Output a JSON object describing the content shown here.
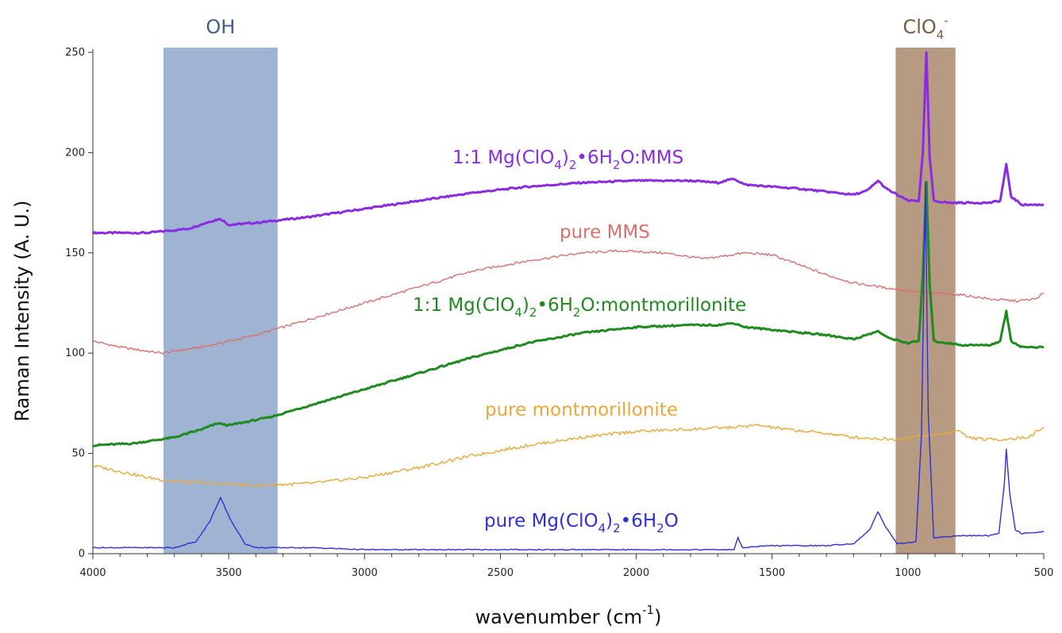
{
  "chart_data": {
    "type": "line",
    "title": "",
    "xlabel": {
      "main": "wavenumber (cm",
      "sup": "-1",
      "end": ")"
    },
    "ylabel": "Raman Intensity (A. U.)",
    "xlim": [
      4000,
      500
    ],
    "ylim": [
      0,
      250
    ],
    "x_reversed": true,
    "x_ticks": [
      4000,
      3500,
      3000,
      2500,
      2000,
      1500,
      1000,
      500
    ],
    "y_ticks": [
      0,
      50,
      100,
      150,
      200,
      250
    ],
    "grid": false,
    "bands": [
      {
        "label": "OH",
        "x_start": 3740,
        "x_end": 3320,
        "color": "#9eb4d2"
      },
      {
        "label": "ClO",
        "label_sub": "4",
        "label_sup": "-",
        "x_start": 1045,
        "x_end": 825,
        "color": "#b79a82"
      }
    ],
    "series": [
      {
        "key": "mg_mms",
        "label_parts": [
          "1:1 Mg(ClO",
          "4",
          ")",
          "2",
          "•",
          "6H",
          "2",
          "O:MMS"
        ],
        "color": "#8a2be2",
        "points": [
          [
            4000,
            160
          ],
          [
            3800,
            160
          ],
          [
            3650,
            162
          ],
          [
            3560,
            166
          ],
          [
            3530,
            167
          ],
          [
            3500,
            164
          ],
          [
            3400,
            165
          ],
          [
            3200,
            168
          ],
          [
            3000,
            172
          ],
          [
            2800,
            176
          ],
          [
            2600,
            180
          ],
          [
            2400,
            183
          ],
          [
            2200,
            185
          ],
          [
            2000,
            186
          ],
          [
            1800,
            186
          ],
          [
            1700,
            185
          ],
          [
            1640,
            187
          ],
          [
            1600,
            184
          ],
          [
            1400,
            182
          ],
          [
            1200,
            179
          ],
          [
            1150,
            181
          ],
          [
            1110,
            186
          ],
          [
            1080,
            182
          ],
          [
            1000,
            176
          ],
          [
            960,
            176
          ],
          [
            945,
            200
          ],
          [
            932,
            250
          ],
          [
            920,
            198
          ],
          [
            905,
            176
          ],
          [
            850,
            175
          ],
          [
            700,
            175
          ],
          [
            660,
            176
          ],
          [
            638,
            194
          ],
          [
            620,
            178
          ],
          [
            580,
            174
          ],
          [
            500,
            174
          ]
        ]
      },
      {
        "key": "pure_mms",
        "label_parts": [
          "pure MMS"
        ],
        "color": "#d97070",
        "points": [
          [
            4000,
            106
          ],
          [
            3900,
            103
          ],
          [
            3750,
            100
          ],
          [
            3600,
            103
          ],
          [
            3400,
            109
          ],
          [
            3200,
            117
          ],
          [
            3000,
            125
          ],
          [
            2800,
            133
          ],
          [
            2600,
            141
          ],
          [
            2400,
            146
          ],
          [
            2200,
            150
          ],
          [
            2050,
            151
          ],
          [
            1900,
            150
          ],
          [
            1750,
            147
          ],
          [
            1600,
            150
          ],
          [
            1500,
            149
          ],
          [
            1400,
            144
          ],
          [
            1300,
            139
          ],
          [
            1200,
            135
          ],
          [
            1100,
            133
          ],
          [
            1000,
            131
          ],
          [
            900,
            130
          ],
          [
            800,
            129
          ],
          [
            700,
            127
          ],
          [
            600,
            126
          ],
          [
            530,
            127
          ],
          [
            500,
            130
          ]
        ]
      },
      {
        "key": "mg_mont",
        "label_parts": [
          "1:1 Mg(ClO",
          "4",
          ")",
          "2",
          "•",
          "6H",
          "2",
          "O:montmorillonite"
        ],
        "color": "#1f8a1f",
        "points": [
          [
            4000,
            54
          ],
          [
            3850,
            55
          ],
          [
            3700,
            58
          ],
          [
            3600,
            62
          ],
          [
            3540,
            65
          ],
          [
            3500,
            64
          ],
          [
            3350,
            68
          ],
          [
            3200,
            74
          ],
          [
            3000,
            82
          ],
          [
            2800,
            90
          ],
          [
            2600,
            98
          ],
          [
            2400,
            105
          ],
          [
            2200,
            110
          ],
          [
            2000,
            113
          ],
          [
            1800,
            114
          ],
          [
            1700,
            114
          ],
          [
            1640,
            115
          ],
          [
            1600,
            113
          ],
          [
            1450,
            111
          ],
          [
            1300,
            109
          ],
          [
            1200,
            107
          ],
          [
            1130,
            110
          ],
          [
            1110,
            111
          ],
          [
            1080,
            108
          ],
          [
            1000,
            105
          ],
          [
            960,
            106
          ],
          [
            945,
            140
          ],
          [
            932,
            185
          ],
          [
            920,
            135
          ],
          [
            905,
            106
          ],
          [
            800,
            104
          ],
          [
            700,
            104
          ],
          [
            660,
            106
          ],
          [
            638,
            121
          ],
          [
            620,
            106
          ],
          [
            580,
            103
          ],
          [
            500,
            103
          ]
        ]
      },
      {
        "key": "pure_mont",
        "label_parts": [
          "pure montmorillonite"
        ],
        "color": "#e8a83a",
        "points": [
          [
            4000,
            44
          ],
          [
            3900,
            41
          ],
          [
            3800,
            38
          ],
          [
            3700,
            36
          ],
          [
            3550,
            35
          ],
          [
            3400,
            34
          ],
          [
            3200,
            35
          ],
          [
            3000,
            38
          ],
          [
            2800,
            43
          ],
          [
            2600,
            49
          ],
          [
            2400,
            54
          ],
          [
            2200,
            58
          ],
          [
            2000,
            61
          ],
          [
            1800,
            62
          ],
          [
            1650,
            63
          ],
          [
            1550,
            64
          ],
          [
            1450,
            62
          ],
          [
            1300,
            60
          ],
          [
            1200,
            58
          ],
          [
            1050,
            57
          ],
          [
            930,
            59
          ],
          [
            850,
            60
          ],
          [
            820,
            62
          ],
          [
            780,
            58
          ],
          [
            720,
            57
          ],
          [
            650,
            57
          ],
          [
            560,
            58
          ],
          [
            500,
            63
          ]
        ]
      },
      {
        "key": "pure_mg",
        "label_parts": [
          "pure Mg(ClO",
          "4",
          ")",
          "2",
          "•",
          "6H",
          "2",
          "O"
        ],
        "color": "#2f2fd6",
        "points": [
          [
            4000,
            3
          ],
          [
            3800,
            3
          ],
          [
            3700,
            3
          ],
          [
            3620,
            6
          ],
          [
            3570,
            16
          ],
          [
            3530,
            28
          ],
          [
            3490,
            16
          ],
          [
            3440,
            5
          ],
          [
            3400,
            3
          ],
          [
            3200,
            3
          ],
          [
            3000,
            2
          ],
          [
            2500,
            2
          ],
          [
            2000,
            2
          ],
          [
            1700,
            2
          ],
          [
            1640,
            2
          ],
          [
            1625,
            8
          ],
          [
            1610,
            3
          ],
          [
            1500,
            4
          ],
          [
            1300,
            4
          ],
          [
            1200,
            5
          ],
          [
            1140,
            12
          ],
          [
            1110,
            21
          ],
          [
            1080,
            13
          ],
          [
            1040,
            5
          ],
          [
            970,
            6
          ],
          [
            950,
            60
          ],
          [
            936,
            185
          ],
          [
            925,
            70
          ],
          [
            905,
            8
          ],
          [
            800,
            9
          ],
          [
            700,
            9
          ],
          [
            665,
            10
          ],
          [
            645,
            35
          ],
          [
            638,
            52
          ],
          [
            625,
            30
          ],
          [
            605,
            12
          ],
          [
            580,
            10
          ],
          [
            500,
            11
          ]
        ]
      }
    ]
  }
}
